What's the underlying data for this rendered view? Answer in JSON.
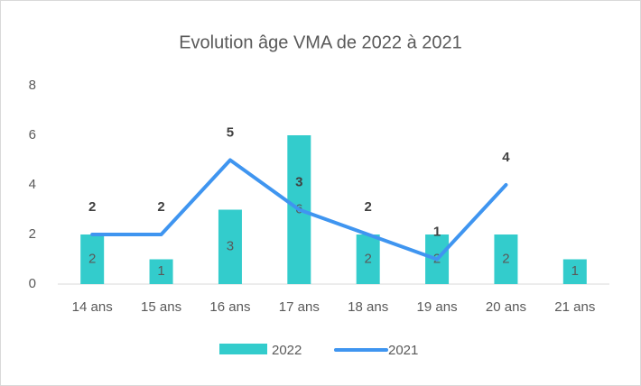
{
  "chart_data": {
    "type": "bar-line",
    "title": "Evolution âge VMA de 2022 à 2021",
    "categories": [
      "14 ans",
      "15 ans",
      "16 ans",
      "17 ans",
      "18 ans",
      "19 ans",
      "20 ans",
      "21 ans"
    ],
    "series": [
      {
        "name": "2022",
        "type": "bar",
        "color": "#33cccc",
        "values": [
          2,
          1,
          3,
          6,
          2,
          2,
          2,
          1
        ]
      },
      {
        "name": "2021",
        "type": "line",
        "color": "#3f95f0",
        "values": [
          2,
          2,
          5,
          3,
          2,
          1,
          4,
          null
        ]
      }
    ],
    "ylim": [
      0,
      8
    ],
    "yticks": [
      0,
      2,
      4,
      6,
      8
    ],
    "grid": false,
    "legend": "bottom"
  }
}
